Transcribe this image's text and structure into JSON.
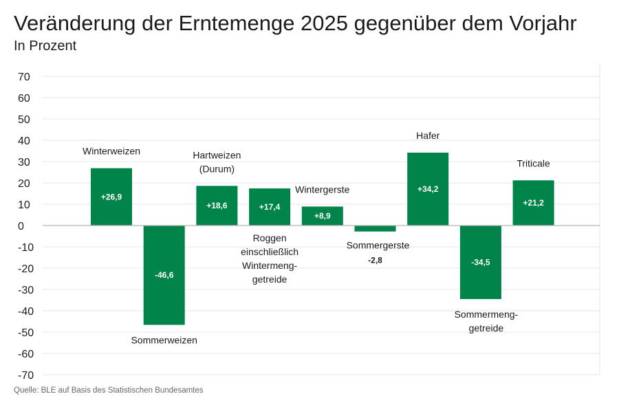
{
  "title": "Veränderung der Erntemenge 2025 gegenüber dem Vorjahr",
  "subtitle": "In Prozent",
  "source": "Quelle: BLE auf Basis des Statistischen Bundesamtes",
  "colors": {
    "bar": "#00844a",
    "grid": "#e6e6e6",
    "zero": "#b5b5b5"
  },
  "chart_data": {
    "type": "bar",
    "categories": [
      [
        "Winterweizen"
      ],
      [
        "Sommerweizen"
      ],
      [
        "Hartweizen",
        "(Durum)"
      ],
      [
        "Roggen",
        "einschließlich",
        "Wintermeng-",
        "getreide"
      ],
      [
        "Wintergerste"
      ],
      [
        "Sommergerste"
      ],
      [
        "Hafer"
      ],
      [
        "Sommermeng-",
        "getreide"
      ],
      [
        "Triticale"
      ]
    ],
    "values": [
      26.9,
      -46.6,
      18.6,
      17.4,
      8.9,
      -2.8,
      34.2,
      -34.5,
      21.2
    ],
    "value_labels": [
      "+26,9",
      "-46,6",
      "+18,6",
      "+17,4",
      "+8,9",
      "-2,8",
      "+34,2",
      "-34,5",
      "+21,2"
    ],
    "yticks": [
      "70",
      "60",
      "50",
      "40",
      "30",
      "20",
      "10",
      "0",
      "-10",
      "-20",
      "-30",
      "-40",
      "-50",
      "-60",
      "-70"
    ],
    "ylim": [
      -70,
      70
    ],
    "grid": true
  }
}
